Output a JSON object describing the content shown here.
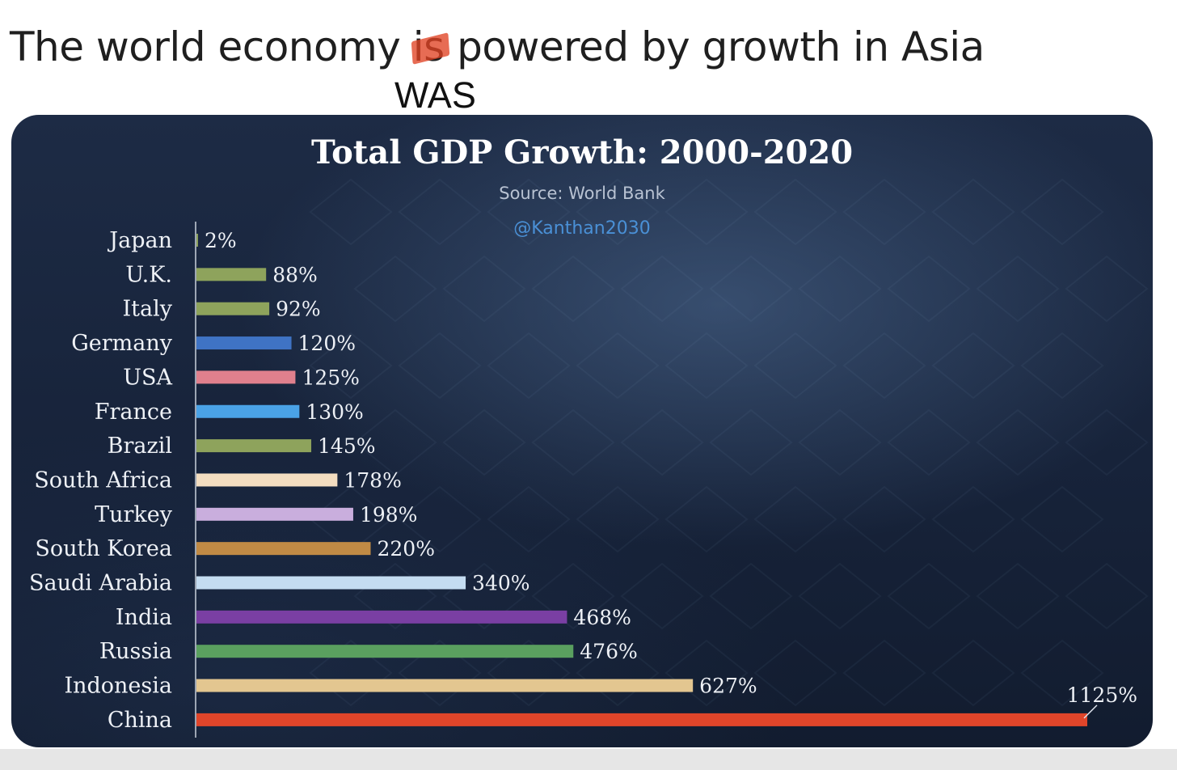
{
  "headline": {
    "before": "The world economy ",
    "struck": "is",
    "after": " powered by growth in Asia",
    "correction": "WAS"
  },
  "chart_data": {
    "type": "bar",
    "orientation": "horizontal",
    "title": "Total GDP Growth: 2000-2020",
    "source": "Source: World Bank",
    "handle": "@Kanthan2030",
    "xlabel": "",
    "ylabel": "",
    "value_suffix": "%",
    "xlim": [
      0,
      1125
    ],
    "grid": false,
    "categories": [
      "Japan",
      "U.K.",
      "Italy",
      "Germany",
      "USA",
      "France",
      "Brazil",
      "South Africa",
      "Turkey",
      "South Korea",
      "Saudi Arabia",
      "India",
      "Russia",
      "Indonesia",
      "China"
    ],
    "values": [
      2,
      88,
      92,
      120,
      125,
      130,
      145,
      178,
      198,
      220,
      340,
      468,
      476,
      627,
      1125
    ],
    "value_labels": [
      "2%",
      "88%",
      "92%",
      "120%",
      "125%",
      "130%",
      "145%",
      "178%",
      "198%",
      "220%",
      "340%",
      "468%",
      "476%",
      "627%",
      "1125%"
    ],
    "colors": [
      "#8ea35c",
      "#8ea35c",
      "#8ea35c",
      "#3f73c4",
      "#e0808d",
      "#4aa2e6",
      "#8ea35c",
      "#f3ddc0",
      "#c9aedd",
      "#c08a45",
      "#c4dcf1",
      "#7a3fa3",
      "#5aa05f",
      "#e3c690",
      "#e0452a"
    ]
  }
}
